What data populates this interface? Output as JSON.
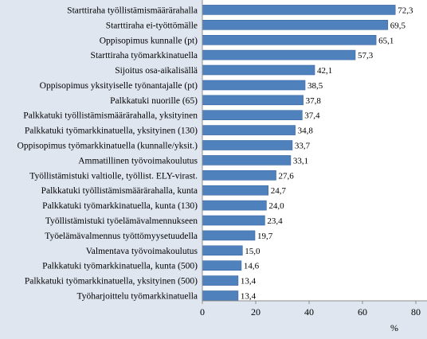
{
  "chart_data": {
    "type": "bar",
    "orientation": "horizontal",
    "categories": [
      "Starttiraha työllistämismäärärahalla",
      "Starttiraha ei-työttömälle",
      "Oppisopimus kunnalle (pt)",
      "Starttiraha työmarkkinatuella",
      "Sijoitus osa-aikalisällä",
      "Oppisopimus yksityiselle  työnantajalle (pt)",
      "Palkkatuki nuorille (65)",
      "Palkkatuki työllistämismäärärahalla, yksityinen",
      "Palkkatuki työmarkkinatuella, yksityinen (130)",
      "Oppisopimus työmarkkinatuella (kunnalle/yksit.)",
      "Ammatillinen työvoimakoulutus",
      "Työllistämistuki valtiolle, työllist. ELY-virast.",
      "Palkkatuki työllistämismäärärahalla, kunta",
      "Palkkatuki työmarkkinatuella, kunta (130)",
      "Työllistämistuki työelämävalmennukseen",
      "Työelämävalmennus työttömyysetuudella",
      "Valmentava työvoimakoulutus",
      "Palkkatuki työmarkkinatuella, kunta (500)",
      "Palkkatuki työmarkkinatuella, yksityinen (500)",
      "Työharjoittelu työmarkkinatuella"
    ],
    "values": [
      72.3,
      69.5,
      65.1,
      57.3,
      42.1,
      38.5,
      37.8,
      37.4,
      34.8,
      33.7,
      33.1,
      27.6,
      24.7,
      24.0,
      23.4,
      19.7,
      15.0,
      14.6,
      13.4,
      13.4
    ],
    "value_labels": [
      "72,3",
      "69,5",
      "65,1",
      "57,3",
      "42,1",
      "38,5",
      "37,8",
      "37,4",
      "34,8",
      "33,7",
      "33,1",
      "27,6",
      "24,7",
      "24,0",
      "23,4",
      "19,7",
      "15,0",
      "14,6",
      "13,4",
      "13,4"
    ],
    "xlim": [
      0,
      80
    ],
    "xticks": [
      0,
      20,
      40,
      60,
      80
    ],
    "xlabel": "%",
    "grid": false,
    "legend": "none",
    "colors": {
      "bar": "#4f81bd",
      "bar_edge": "#3a67a3",
      "background": "#dfe6f0",
      "plot": "#ffffff",
      "axis": "#8c8c8c"
    }
  }
}
